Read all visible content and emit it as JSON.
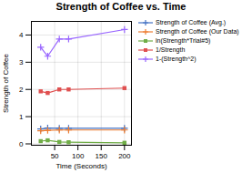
{
  "chart_data": {
    "type": "line",
    "title": "Strength of Coffee vs. Time",
    "xlabel": "Time (Seconds)",
    "ylabel": "Strength of Coffee",
    "x": [
      20,
      35,
      60,
      80,
      200
    ],
    "series": [
      {
        "name": "Strength of Coffee (Avg.)",
        "color": "#4472c4",
        "marker": "plus",
        "values": [
          0.55,
          0.58,
          0.57,
          0.57,
          0.57
        ]
      },
      {
        "name": "Strength of Coffee (Our Data)",
        "color": "#ed7d31",
        "marker": "plus",
        "values": [
          0.48,
          0.5,
          0.51,
          0.51,
          0.51
        ]
      },
      {
        "name": "ln(Strength*Trial#5)",
        "color": "#70ad47",
        "marker": "square",
        "values": [
          0.1,
          0.13,
          0.07,
          0.06,
          0.04
        ]
      },
      {
        "name": "1/Strength",
        "color": "#e05050",
        "marker": "square",
        "values": [
          1.93,
          1.87,
          2.0,
          2.0,
          2.05
        ]
      },
      {
        "name": "1-(Strength^2)",
        "color": "#9966ff",
        "marker": "plus",
        "values": [
          3.55,
          3.22,
          3.85,
          3.85,
          4.2
        ]
      }
    ],
    "xlim": [
      0,
      215
    ],
    "ylim": [
      -0.05,
      4.5
    ],
    "xticks": [
      50,
      100,
      150,
      200
    ],
    "yticks": [
      0,
      1,
      2,
      3,
      4
    ],
    "grid": true,
    "legend": "upper right"
  }
}
